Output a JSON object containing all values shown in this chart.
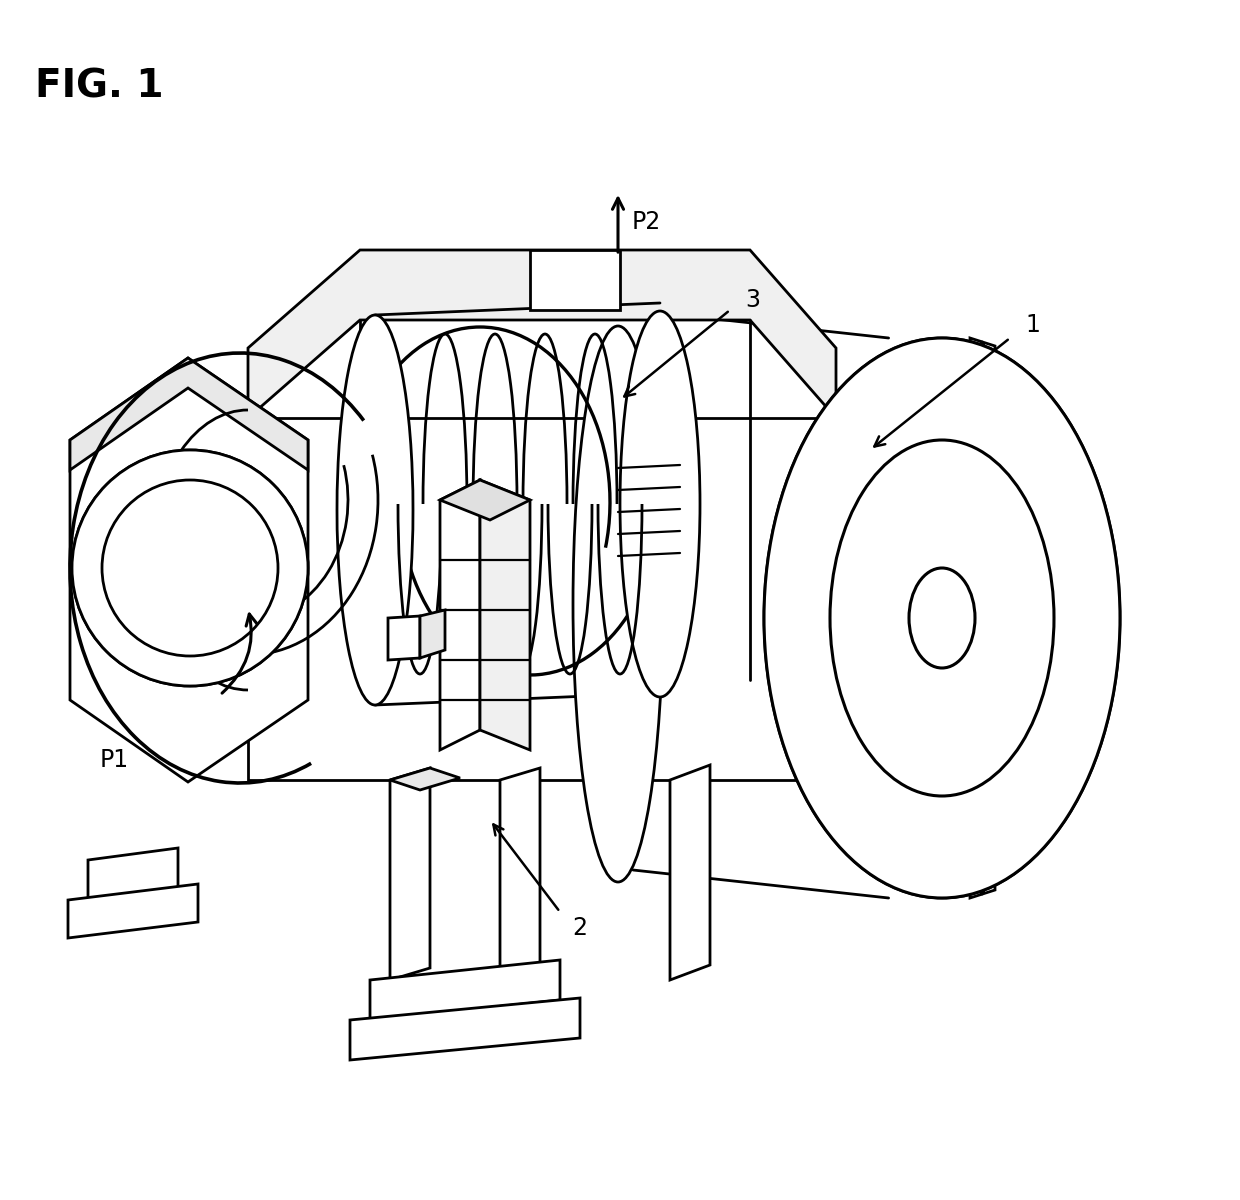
{
  "title": "FIG. 1",
  "background_color": "#ffffff",
  "line_color": "#000000",
  "line_width": 2.0,
  "label_fontsize": 17,
  "figsize": [
    12.4,
    12.0
  ],
  "dpi": 100
}
